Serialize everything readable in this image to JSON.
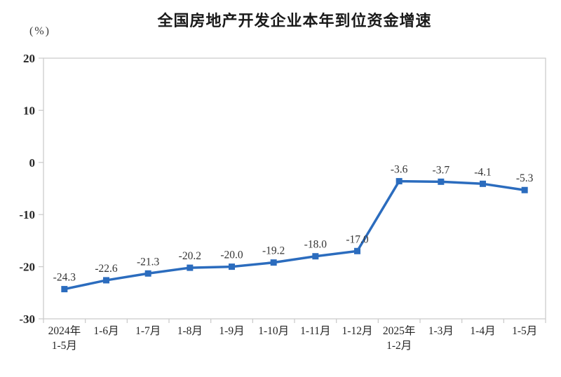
{
  "page": {
    "background": "#ffffff"
  },
  "chart_data": {
    "type": "line",
    "title": "全国房地产开发企业本年到位资金增速",
    "unit_label": "(%)",
    "categories": [
      "2024年\n1-5月",
      "1-6月",
      "1-7月",
      "1-8月",
      "1-9月",
      "1-10月",
      "1-11月",
      "1-12月",
      "2025年\n1-2月",
      "1-3月",
      "1-4月",
      "1-5月"
    ],
    "values": [
      -24.3,
      -22.6,
      -21.3,
      -20.2,
      -20.0,
      -19.2,
      -18.0,
      -17.0,
      -3.6,
      -3.7,
      -4.1,
      -5.3
    ],
    "ylim": [
      -30,
      20
    ],
    "yticks": [
      20,
      10,
      0,
      -10,
      -20,
      -30
    ],
    "grid": false,
    "legend": "none",
    "line_color": "#2B6CBE",
    "marker": "square",
    "data_label_color": "#333333",
    "axis_label_color": "#262626",
    "axis_line_color": "#c9c9c9"
  }
}
